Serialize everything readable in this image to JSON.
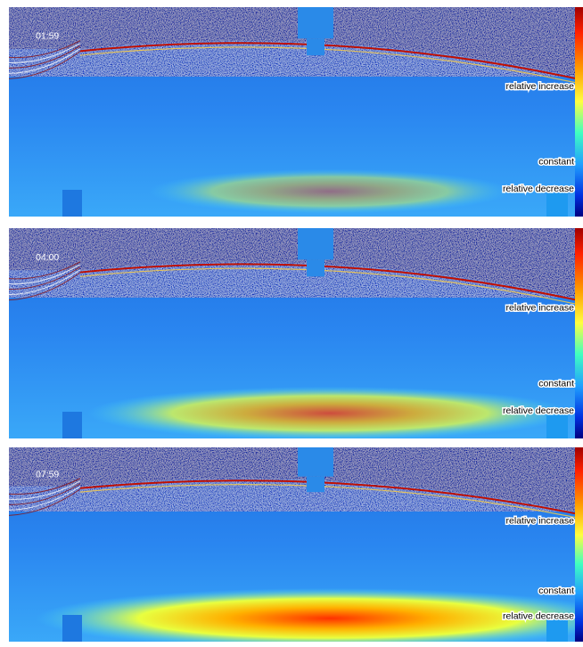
{
  "panels": [
    {
      "time": "01:59",
      "increase": "relative increase",
      "constant": "constant",
      "decrease": "relative decrease"
    },
    {
      "time": "04:00",
      "increase": "relative increase",
      "constant": "constant",
      "decrease": "relative decrease"
    },
    {
      "time": "07:59",
      "increase": "relative increase",
      "constant": "constant",
      "decrease": "relative decrease"
    }
  ]
}
